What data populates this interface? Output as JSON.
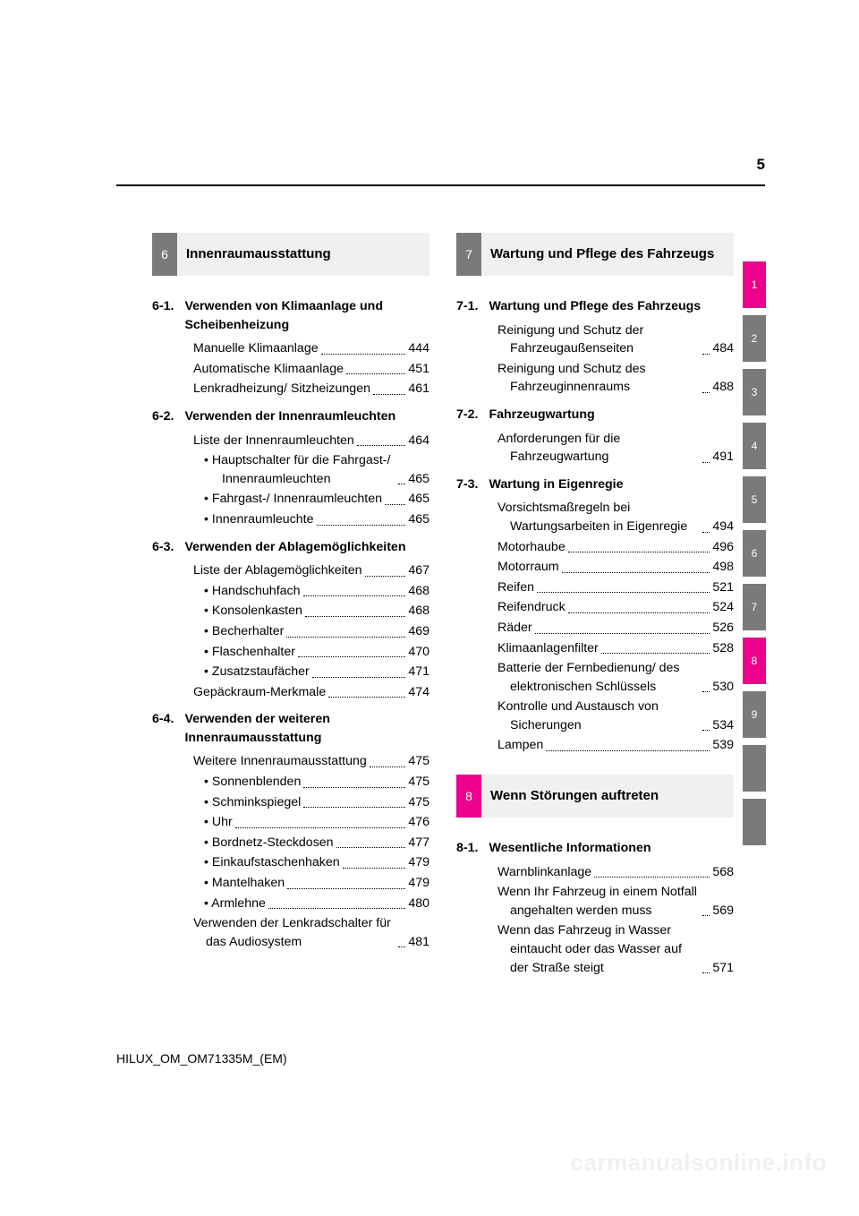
{
  "page_number": "5",
  "footer_code": "HILUX_OM_OM71335M_(EM)",
  "watermark": "carmanualsonline.info",
  "colors": {
    "gray": "#7a7a7a",
    "pink": "#ec008c",
    "header_bg": "#f0f0f0"
  },
  "tabs": [
    {
      "label": "1",
      "style": "pink"
    },
    {
      "label": "2",
      "style": "gray"
    },
    {
      "label": "3",
      "style": "gray"
    },
    {
      "label": "4",
      "style": "gray"
    },
    {
      "label": "5",
      "style": "gray"
    },
    {
      "label": "6",
      "style": "gray"
    },
    {
      "label": "7",
      "style": "gray"
    },
    {
      "label": "8",
      "style": "pink"
    },
    {
      "label": "9",
      "style": "gray"
    },
    {
      "label": "",
      "style": "blank"
    },
    {
      "label": "",
      "style": "blank"
    }
  ],
  "left_column": {
    "header": {
      "num": "6",
      "title": "Innenraumausstattung",
      "style": "gray"
    },
    "sections": [
      {
        "num": "6-1.",
        "title": "Verwenden von Klimaanlage und Scheibenheizung",
        "entries": [
          {
            "label": "Manuelle Klimaanlage",
            "page": "444"
          },
          {
            "label": "Automatische Klimaanlage",
            "page": "451",
            "hanging": true
          },
          {
            "label": "Lenkradheizung/ Sitzheizungen",
            "page": "461",
            "hanging": true
          }
        ]
      },
      {
        "num": "6-2.",
        "title": "Verwenden der Innenraumleuchten",
        "entries": [
          {
            "label": "Liste der Innenraumleuchten",
            "page": "464",
            "hanging": true
          },
          {
            "label": "Hauptschalter für die Fahrgast-/ Innenraumleuchten",
            "page": "465",
            "bullet": true,
            "hanging": true
          },
          {
            "label": "Fahrgast-/ Innenraumleuchten",
            "page": "465",
            "bullet": true,
            "hanging": true
          },
          {
            "label": "Innenraumleuchte",
            "page": "465",
            "bullet": true
          }
        ]
      },
      {
        "num": "6-3.",
        "title": "Verwenden der Ablagemöglichkeiten",
        "entries": [
          {
            "label": "Liste der Ablagemöglichkeiten",
            "page": "467",
            "hanging": true
          },
          {
            "label": "Handschuhfach",
            "page": "468",
            "bullet": true
          },
          {
            "label": "Konsolenkasten",
            "page": "468",
            "bullet": true
          },
          {
            "label": "Becherhalter",
            "page": "469",
            "bullet": true
          },
          {
            "label": "Flaschenhalter",
            "page": "470",
            "bullet": true
          },
          {
            "label": "Zusatzstaufächer",
            "page": "471",
            "bullet": true
          },
          {
            "label": "Gepäckraum-Merkmale",
            "page": "474"
          }
        ]
      },
      {
        "num": "6-4.",
        "title": "Verwenden der weiteren Innenraumausstattung",
        "entries": [
          {
            "label": "Weitere Innenraumausstattung",
            "page": "475",
            "hanging": true
          },
          {
            "label": "Sonnenblenden",
            "page": "475",
            "bullet": true
          },
          {
            "label": "Schminkspiegel",
            "page": "475",
            "bullet": true
          },
          {
            "label": "Uhr",
            "page": "476",
            "bullet": true
          },
          {
            "label": "Bordnetz-Steckdosen",
            "page": "477",
            "bullet": true
          },
          {
            "label": "Einkaufstaschenhaken",
            "page": "479",
            "bullet": true
          },
          {
            "label": "Mantelhaken",
            "page": "479",
            "bullet": true
          },
          {
            "label": "Armlehne",
            "page": "480",
            "bullet": true
          },
          {
            "label": "Verwenden der Lenkradschalter für das Audiosystem",
            "page": "481",
            "hanging": true
          }
        ]
      }
    ]
  },
  "right_column": {
    "headers": [
      {
        "num": "7",
        "title": "Wartung und Pflege des Fahrzeugs",
        "style": "gray",
        "sections": [
          {
            "num": "7-1.",
            "title": "Wartung und Pflege des Fahrzeugs",
            "entries": [
              {
                "label": "Reinigung und Schutz der Fahrzeugaußenseiten",
                "page": "484",
                "hanging": true
              },
              {
                "label": "Reinigung und Schutz des Fahrzeuginnenraums",
                "page": "488",
                "hanging": true
              }
            ]
          },
          {
            "num": "7-2.",
            "title": "Fahrzeugwartung",
            "entries": [
              {
                "label": "Anforderungen für die Fahrzeugwartung",
                "page": "491",
                "hanging": true
              }
            ]
          },
          {
            "num": "7-3.",
            "title": "Wartung in Eigenregie",
            "entries": [
              {
                "label": "Vorsichtsmaßregeln bei Wartungsarbeiten in Eigenregie",
                "page": "494",
                "hanging": true
              },
              {
                "label": "Motorhaube",
                "page": "496"
              },
              {
                "label": "Motorraum",
                "page": "498"
              },
              {
                "label": "Reifen",
                "page": "521"
              },
              {
                "label": "Reifendruck",
                "page": "524"
              },
              {
                "label": "Räder",
                "page": "526"
              },
              {
                "label": "Klimaanlagenfilter",
                "page": "528"
              },
              {
                "label": "Batterie der Fernbedienung/ des elektronischen Schlüssels",
                "page": "530",
                "hanging": true
              },
              {
                "label": "Kontrolle und Austausch von Sicherungen",
                "page": "534",
                "hanging": true
              },
              {
                "label": "Lampen",
                "page": "539"
              }
            ]
          }
        ]
      },
      {
        "num": "8",
        "title": "Wenn Störungen auftreten",
        "style": "pink",
        "sections": [
          {
            "num": "8-1.",
            "title": "Wesentliche Informationen",
            "entries": [
              {
                "label": "Warnblinkanlage",
                "page": "568"
              },
              {
                "label": "Wenn Ihr Fahrzeug in einem Notfall angehalten werden muss",
                "page": "569",
                "hanging": true
              },
              {
                "label": "Wenn das Fahrzeug in Wasser eintaucht oder das Wasser auf der Straße steigt",
                "page": "571",
                "hanging": true
              }
            ]
          }
        ]
      }
    ]
  }
}
